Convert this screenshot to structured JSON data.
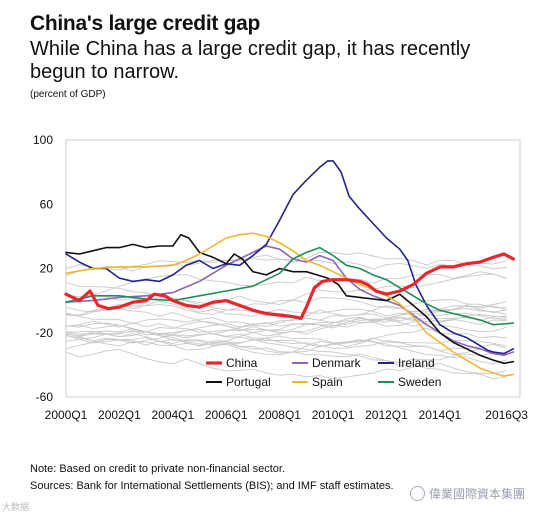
{
  "title": "China's large credit gap",
  "subtitle": "While China has a large credit gap, it has recently begun to narrow.",
  "unit": "(percent of GDP)",
  "note": "Note: Based on credit to private non-financial sector.",
  "sources": "Sources: Bank for International Settlements (BIS); and IMF staff estimates.",
  "watermark_left": "大数据",
  "watermark_right": "偉業國際資本集團",
  "chart_data": {
    "type": "line",
    "title": "China's large credit gap",
    "ylabel": "(percent of GDP)",
    "ylim": [
      -60,
      100
    ],
    "yticks": [
      100,
      60,
      20,
      -20,
      -60
    ],
    "xlim": [
      2000.0,
      2017.0
    ],
    "xticks": [
      {
        "label": "2000Q1",
        "x": 2000.0
      },
      {
        "label": "2002Q1",
        "x": 2002.0
      },
      {
        "label": "2004Q1",
        "x": 2004.0
      },
      {
        "label": "2006Q1",
        "x": 2006.0
      },
      {
        "label": "2008Q1",
        "x": 2008.0
      },
      {
        "label": "2010Q1",
        "x": 2010.0
      },
      {
        "label": "2012Q1",
        "x": 2012.0
      },
      {
        "label": "2014Q1",
        "x": 2014.0
      },
      {
        "label": "2016Q3",
        "x": 2016.5
      }
    ],
    "legend_position": "bottom-center",
    "series": [
      {
        "name": "China",
        "color": "#e8262b",
        "width": 3.2,
        "points": [
          [
            2000,
            4
          ],
          [
            2000.5,
            0
          ],
          [
            2000.9,
            6
          ],
          [
            2001.2,
            -3
          ],
          [
            2001.6,
            -5
          ],
          [
            2002,
            -4
          ],
          [
            2002.5,
            -1
          ],
          [
            2003,
            0
          ],
          [
            2003.3,
            4
          ],
          [
            2003.7,
            3
          ],
          [
            2004,
            0
          ],
          [
            2004.5,
            -3
          ],
          [
            2005,
            -4
          ],
          [
            2005.5,
            -1
          ],
          [
            2006,
            0
          ],
          [
            2006.5,
            -3
          ],
          [
            2007,
            -6
          ],
          [
            2007.5,
            -8
          ],
          [
            2008,
            -9
          ],
          [
            2008.5,
            -10
          ],
          [
            2008.8,
            -11
          ],
          [
            2009,
            -4
          ],
          [
            2009.3,
            8
          ],
          [
            2009.6,
            12
          ],
          [
            2010,
            13
          ],
          [
            2010.5,
            13
          ],
          [
            2011,
            12
          ],
          [
            2011.3,
            10
          ],
          [
            2011.6,
            6
          ],
          [
            2012,
            4
          ],
          [
            2012.5,
            6
          ],
          [
            2013,
            10
          ],
          [
            2013.5,
            17
          ],
          [
            2014,
            21
          ],
          [
            2014.5,
            21
          ],
          [
            2015,
            23
          ],
          [
            2015.5,
            24
          ],
          [
            2016,
            27
          ],
          [
            2016.4,
            29
          ],
          [
            2016.75,
            26
          ]
        ]
      },
      {
        "name": "Denmark",
        "color": "#8b66b8",
        "width": 1.6,
        "points": [
          [
            2000,
            -1
          ],
          [
            2001,
            0
          ],
          [
            2002,
            2
          ],
          [
            2003,
            3
          ],
          [
            2004,
            5
          ],
          [
            2005,
            12
          ],
          [
            2006,
            22
          ],
          [
            2007,
            30
          ],
          [
            2007.5,
            34
          ],
          [
            2008,
            32
          ],
          [
            2008.5,
            26
          ],
          [
            2009,
            24
          ],
          [
            2009.5,
            28
          ],
          [
            2010,
            25
          ],
          [
            2010.5,
            14
          ],
          [
            2011,
            7
          ],
          [
            2011.5,
            3
          ],
          [
            2012,
            0
          ],
          [
            2012.5,
            -3
          ],
          [
            2013,
            -9
          ],
          [
            2013.5,
            -15
          ],
          [
            2014,
            -20
          ],
          [
            2014.5,
            -25
          ],
          [
            2015,
            -28
          ],
          [
            2015.5,
            -30
          ],
          [
            2016,
            -33
          ],
          [
            2016.4,
            -34
          ],
          [
            2016.75,
            -32
          ]
        ]
      },
      {
        "name": "Ireland",
        "color": "#23238f",
        "width": 1.6,
        "points": [
          [
            2000,
            29
          ],
          [
            2000.5,
            24
          ],
          [
            2001,
            20
          ],
          [
            2001.5,
            20
          ],
          [
            2002,
            14
          ],
          [
            2002.5,
            12
          ],
          [
            2003,
            13
          ],
          [
            2003.5,
            12
          ],
          [
            2004,
            16
          ],
          [
            2004.5,
            22
          ],
          [
            2005,
            25
          ],
          [
            2005.5,
            20
          ],
          [
            2006,
            23
          ],
          [
            2006.5,
            22
          ],
          [
            2007,
            28
          ],
          [
            2007.5,
            35
          ],
          [
            2008,
            50
          ],
          [
            2008.5,
            66
          ],
          [
            2009,
            75
          ],
          [
            2009.5,
            83
          ],
          [
            2009.8,
            87
          ],
          [
            2010,
            87
          ],
          [
            2010.3,
            80
          ],
          [
            2010.6,
            65
          ],
          [
            2011,
            57
          ],
          [
            2011.5,
            48
          ],
          [
            2012,
            39
          ],
          [
            2012.5,
            32
          ],
          [
            2012.8,
            25
          ],
          [
            2013.1,
            10
          ],
          [
            2013.5,
            -3
          ],
          [
            2014,
            -15
          ],
          [
            2014.5,
            -20
          ],
          [
            2015,
            -23
          ],
          [
            2015.5,
            -28
          ],
          [
            2015.8,
            -31
          ],
          [
            2016,
            -32
          ],
          [
            2016.4,
            -33
          ],
          [
            2016.75,
            -30
          ]
        ]
      },
      {
        "name": "Portugal",
        "color": "#111111",
        "width": 1.6,
        "points": [
          [
            2000,
            30
          ],
          [
            2000.5,
            29
          ],
          [
            2001,
            31
          ],
          [
            2001.5,
            33
          ],
          [
            2002,
            33
          ],
          [
            2002.5,
            35
          ],
          [
            2003,
            33
          ],
          [
            2003.5,
            34
          ],
          [
            2004,
            34
          ],
          [
            2004.3,
            41
          ],
          [
            2004.6,
            39
          ],
          [
            2005,
            30
          ],
          [
            2005.5,
            27
          ],
          [
            2006,
            23
          ],
          [
            2006.3,
            29
          ],
          [
            2006.6,
            26
          ],
          [
            2007,
            18
          ],
          [
            2007.5,
            16
          ],
          [
            2008,
            20
          ],
          [
            2008.5,
            18
          ],
          [
            2009,
            18
          ],
          [
            2009.4,
            16
          ],
          [
            2009.8,
            14
          ],
          [
            2010.2,
            10
          ],
          [
            2010.5,
            3
          ],
          [
            2011,
            2
          ],
          [
            2011.5,
            1
          ],
          [
            2012,
            0
          ],
          [
            2012.5,
            4
          ],
          [
            2013,
            -3
          ],
          [
            2013.5,
            -10
          ],
          [
            2014,
            -20
          ],
          [
            2014.5,
            -26
          ],
          [
            2015,
            -30
          ],
          [
            2015.5,
            -34
          ],
          [
            2016,
            -37
          ],
          [
            2016.4,
            -39
          ],
          [
            2016.75,
            -38
          ]
        ]
      },
      {
        "name": "Spain",
        "color": "#efb62c",
        "width": 1.6,
        "points": [
          [
            2000,
            17
          ],
          [
            2001,
            20
          ],
          [
            2002,
            21
          ],
          [
            2003,
            21
          ],
          [
            2004,
            22
          ],
          [
            2004.5,
            25
          ],
          [
            2005,
            29
          ],
          [
            2005.5,
            34
          ],
          [
            2006,
            39
          ],
          [
            2006.5,
            41
          ],
          [
            2007,
            42
          ],
          [
            2007.5,
            40
          ],
          [
            2008,
            36
          ],
          [
            2008.5,
            31
          ],
          [
            2009,
            25
          ],
          [
            2009.5,
            22
          ],
          [
            2010,
            18
          ],
          [
            2010.5,
            14
          ],
          [
            2011,
            10
          ],
          [
            2011.5,
            7
          ],
          [
            2012,
            3
          ],
          [
            2012.5,
            -2
          ],
          [
            2013,
            -10
          ],
          [
            2013.5,
            -20
          ],
          [
            2014,
            -26
          ],
          [
            2014.5,
            -32
          ],
          [
            2015,
            -37
          ],
          [
            2015.5,
            -42
          ],
          [
            2016,
            -45
          ],
          [
            2016.4,
            -47
          ],
          [
            2016.75,
            -46
          ]
        ]
      },
      {
        "name": "Sweden",
        "color": "#1e8f5c",
        "width": 1.6,
        "points": [
          [
            2000,
            -1
          ],
          [
            2001,
            3
          ],
          [
            2002,
            3
          ],
          [
            2003,
            1
          ],
          [
            2004,
            0
          ],
          [
            2005,
            3
          ],
          [
            2006,
            6
          ],
          [
            2007,
            9
          ],
          [
            2008,
            17
          ],
          [
            2008.5,
            26
          ],
          [
            2009,
            30
          ],
          [
            2009.5,
            33
          ],
          [
            2010,
            28
          ],
          [
            2010.5,
            22
          ],
          [
            2011,
            20
          ],
          [
            2011.5,
            16
          ],
          [
            2012,
            13
          ],
          [
            2012.5,
            8
          ],
          [
            2013,
            3
          ],
          [
            2013.5,
            -2
          ],
          [
            2014,
            -6
          ],
          [
            2014.5,
            -8
          ],
          [
            2015,
            -10
          ],
          [
            2015.5,
            -12
          ],
          [
            2016,
            -15
          ],
          [
            2016.75,
            -14
          ]
        ]
      }
    ]
  }
}
